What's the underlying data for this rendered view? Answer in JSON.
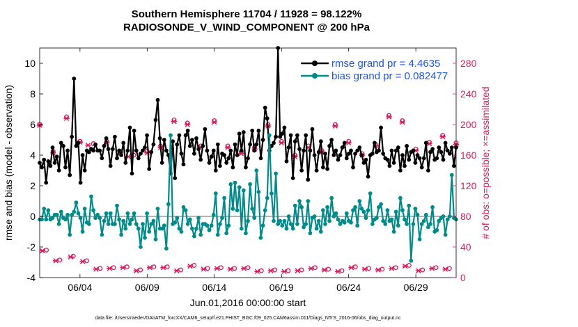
{
  "chart_data": {
    "type": "line",
    "title_line1": "Southern Hemisphere 11704 / 11928 = 98.122%",
    "title_line2": "RADIOSONDE_V_WIND_COMPONENT @ 200 hPa",
    "xlabel": "Jun.01,2016 00:00:00 start",
    "ylabel": "rmse and bias (model - observation)",
    "y2label": "# of obs: o=possible; ×=assimilated",
    "xlim": [
      1,
      32
    ],
    "ylim": [
      -4,
      11
    ],
    "y2lim": [
      0,
      300
    ],
    "x_ticks": [
      4,
      9,
      14,
      19,
      24,
      29
    ],
    "x_tick_labels": [
      "06/04",
      "06/09",
      "06/14",
      "06/19",
      "06/24",
      "06/29"
    ],
    "y_ticks": [
      -4,
      -2,
      0,
      2,
      4,
      6,
      8,
      10
    ],
    "y_tick_labels": [
      "-4",
      "-2",
      "0",
      "2",
      "4",
      "6",
      "8",
      "10"
    ],
    "y2_ticks": [
      0,
      40,
      80,
      120,
      160,
      200,
      240,
      280
    ],
    "y2_tick_labels": [
      "0",
      "40",
      "80",
      "120",
      "160",
      "200",
      "240",
      "280"
    ],
    "colors": {
      "rmse": "#000000",
      "bias": "#008b8b",
      "obs": "#d81b60",
      "zero_line": "#b3b3b3",
      "legend_text": "#1f55e6"
    },
    "series": [
      {
        "name": "rmse grand pr = 4.4635",
        "values": [
          3.5,
          3.2,
          3.7,
          2.2,
          3.6,
          3.3,
          4.5,
          3.5,
          3.9,
          3.0,
          4.8,
          4.6,
          3.2,
          4.3,
          2.7,
          5.2,
          9.0,
          4.6,
          4.8,
          2.2,
          4.0,
          3.0,
          4.3,
          4.2,
          4.4,
          4.3,
          4.7,
          4.3,
          4.3,
          3.8,
          4.6,
          5.1,
          4.4,
          3.3,
          4.4,
          5.2,
          3.8,
          4.3,
          4.0,
          4.8,
          3.5,
          4.3,
          5.8,
          2.8,
          5.6,
          4.3,
          3.8,
          4.1,
          4.3,
          4.5,
          5.3,
          3.1,
          4.2,
          4.7,
          6.3,
          7.6,
          5.1,
          3.5,
          5.0,
          4.3,
          4.0,
          2.8,
          4.9,
          2.5,
          4.7,
          5.3,
          4.1,
          3.4,
          5.3,
          5.6,
          4.6,
          5.0,
          4.1,
          5.1,
          4.4,
          3.7,
          4.6,
          5.7,
          4.3,
          3.5,
          3.9,
          4.3,
          3.0,
          4.7,
          3.3,
          4.1,
          4.0,
          3.5,
          3.8,
          4.3,
          3.2,
          4.7,
          4.0,
          5.4,
          4.3,
          5.5,
          3.2,
          3.8,
          4.7,
          5.6,
          4.3,
          4.7,
          5.6,
          3.8,
          5.0,
          7.1,
          6.4,
          4.3,
          4.6,
          4.8,
          5.2,
          11.0,
          5.2,
          5.4,
          5.8,
          3.6,
          4.5,
          5.3,
          2.5,
          4.9,
          5.3,
          4.4,
          3.0,
          4.3,
          5.3,
          2.4,
          4.3,
          5.7,
          4.0,
          3.0,
          4.2,
          4.9,
          3.2,
          4.1,
          3.1,
          4.6,
          5.0,
          4.0,
          4.3,
          3.7,
          4.0,
          4.5,
          4.8,
          3.8,
          4.1,
          4.3,
          3.2,
          4.1,
          4.3,
          4.5,
          4.0,
          3.5,
          3.7,
          2.6,
          4.0,
          4.1,
          4.8,
          4.2,
          4.3,
          5.8,
          4.1,
          3.8,
          3.7,
          3.3,
          4.3,
          3.5,
          4.3,
          4.5,
          3.0,
          4.0,
          3.3,
          4.6,
          3.7,
          4.2,
          4.3,
          3.5,
          4.0,
          3.8,
          3.2,
          3.8,
          4.8,
          3.0,
          4.2,
          4.4,
          3.7,
          3.8,
          4.5,
          4.2,
          3.7,
          4.8,
          4.3,
          4.1,
          4.5,
          3.3,
          4.5
        ]
      },
      {
        "name": "bias grand pr = 0.082477",
        "values": [
          -0.2,
          -0.2,
          0.5,
          -0.2,
          0.4,
          -0.2,
          -0.1,
          0.1,
          0.1,
          -0.5,
          0.3,
          -0.1,
          -0.2,
          0.1,
          -1.2,
          0.1,
          0.3,
          0.9,
          0.2,
          -0.1,
          -1.0,
          0.5,
          -0.4,
          -0.5,
          1.3,
          0.4,
          -0.1,
          0.1,
          -0.1,
          -1.2,
          -0.3,
          0.2,
          -0.5,
          0.2,
          -0.5,
          -0.5,
          0.7,
          -0.2,
          -1.2,
          -0.3,
          -0.8,
          0.2,
          -0.5,
          -0.2,
          0.2,
          -0.5,
          -0.8,
          -2.0,
          -0.5,
          -1.4,
          0.2,
          -1.0,
          -0.5,
          -0.3,
          -1.5,
          0.5,
          -0.8,
          -0.8,
          -0.6,
          -2.1,
          0.8,
          5.3,
          -0.5,
          -0.4,
          -0.1,
          -0.8,
          -1.0,
          0.6,
          0.4,
          -0.5,
          -0.2,
          -0.8,
          -1.3,
          -0.8,
          -0.1,
          -1.2,
          -0.5,
          -0.5,
          -0.6,
          -0.9,
          -0.6,
          0.1,
          1.5,
          -1.2,
          -0.5,
          -0.1,
          1.2,
          -1.1,
          -0.6,
          2.1,
          0.5,
          2.2,
          0.4,
          1.9,
          -0.8,
          1.7,
          -1.1,
          -0.3,
          2.1,
          0.5,
          -0.1,
          3.0,
          1.6,
          -1.4,
          -0.6,
          0.4,
          1.2,
          5.3,
          1.5,
          -0.3,
          2.8,
          -0.5,
          -0.3,
          -0.6,
          -0.3,
          -0.8,
          0.0,
          -0.5,
          -0.8,
          0.7,
          -0.5,
          1.0,
          0.6,
          -0.7,
          -0.5,
          1.0,
          -1.1,
          -0.1,
          0.0,
          -0.8,
          -0.3,
          -1.0,
          0.4,
          -0.5,
          0.6,
          -0.3,
          1.2,
          0.0,
          0.2,
          -0.2,
          -0.5,
          -0.3,
          -0.4,
          0.2,
          -0.3,
          -0.4,
          0.4,
          0.6,
          -0.6,
          1.0,
          0.5,
          0.3,
          -0.1,
          0.4,
          1.5,
          -0.5,
          -0.2,
          -0.1,
          0.6,
          0.8,
          -0.3,
          -0.5,
          0.4,
          -0.3,
          -0.2,
          -1.0,
          0.3,
          -0.6,
          1.2,
          0.4,
          -0.2,
          -0.5,
          0.7,
          -2.9,
          -0.5,
          0.5,
          0.1,
          -1.5,
          -0.5,
          -0.3,
          0.1,
          -0.7,
          -0.5,
          0.6,
          -1.0,
          -0.9,
          -0.3,
          -0.1,
          0.0,
          -1.2,
          -0.2,
          0.0,
          2.7,
          -0.1,
          -0.2
        ]
      },
      {
        "name": "possible",
        "values": [
          [
            1.0,
            200
          ],
          [
            1.5,
            36
          ],
          [
            2.0,
            165
          ],
          [
            2.5,
            23
          ],
          [
            3.0,
            210
          ],
          [
            3.5,
            28
          ],
          [
            4.0,
            178
          ],
          [
            4.5,
            22
          ],
          [
            5.0,
            175
          ],
          [
            5.5,
            12
          ],
          [
            6.0,
            178
          ],
          [
            6.5,
            13
          ],
          [
            7.0,
            165
          ],
          [
            7.5,
            14
          ],
          [
            8.0,
            160
          ],
          [
            8.5,
            10
          ],
          [
            9.0,
            165
          ],
          [
            9.5,
            14
          ],
          [
            10.0,
            172
          ],
          [
            10.5,
            14
          ],
          [
            11.0,
            206
          ],
          [
            11.5,
            10
          ],
          [
            12.0,
            202
          ],
          [
            12.5,
            16
          ],
          [
            13.0,
            172
          ],
          [
            13.5,
            12
          ],
          [
            14.0,
            205
          ],
          [
            14.5,
            13
          ],
          [
            15.0,
            172
          ],
          [
            15.5,
            12
          ],
          [
            16.0,
            164
          ],
          [
            16.5,
            13
          ],
          [
            17.0,
            170
          ],
          [
            17.5,
            9
          ],
          [
            18.0,
            200
          ],
          [
            18.5,
            10
          ],
          [
            19.0,
            178
          ],
          [
            19.5,
            9
          ],
          [
            20.0,
            160
          ],
          [
            20.5,
            10
          ],
          [
            21.0,
            172
          ],
          [
            21.5,
            13
          ],
          [
            22.0,
            166
          ],
          [
            22.5,
            11
          ],
          [
            23.0,
            200
          ],
          [
            23.5,
            9
          ],
          [
            24.0,
            178
          ],
          [
            24.5,
            14
          ],
          [
            25.0,
            162
          ],
          [
            25.5,
            12
          ],
          [
            26.0,
            174
          ],
          [
            26.5,
            11
          ],
          [
            27.0,
            212
          ],
          [
            27.5,
            13
          ],
          [
            28.0,
            205
          ],
          [
            28.5,
            16
          ],
          [
            29.0,
            168
          ],
          [
            29.5,
            10
          ],
          [
            30.0,
            177
          ],
          [
            30.5,
            13
          ],
          [
            31.0,
            186
          ],
          [
            31.5,
            12
          ],
          [
            32.0,
            176
          ]
        ]
      },
      {
        "name": "assimilated",
        "values": [
          [
            1.0,
            199
          ],
          [
            1.2,
            35
          ],
          [
            2.0,
            163
          ],
          [
            2.2,
            22
          ],
          [
            3.0,
            208
          ],
          [
            3.3,
            27
          ],
          [
            4.0,
            177
          ],
          [
            4.2,
            21
          ],
          [
            4.6,
            173
          ],
          [
            5.2,
            11
          ],
          [
            6.0,
            176
          ],
          [
            6.2,
            12
          ],
          [
            7.0,
            163
          ],
          [
            7.2,
            13
          ],
          [
            7.6,
            158
          ],
          [
            8.2,
            9
          ],
          [
            9.0,
            163
          ],
          [
            9.2,
            13
          ],
          [
            10.0,
            170
          ],
          [
            10.2,
            13
          ],
          [
            11.0,
            204
          ],
          [
            11.2,
            9
          ],
          [
            12.0,
            200
          ],
          [
            12.2,
            15
          ],
          [
            13.0,
            170
          ],
          [
            13.2,
            11
          ],
          [
            14.0,
            203
          ],
          [
            14.2,
            12
          ],
          [
            15.0,
            170
          ],
          [
            15.2,
            11
          ],
          [
            16.0,
            162
          ],
          [
            16.2,
            12
          ],
          [
            17.0,
            168
          ],
          [
            17.2,
            8
          ],
          [
            18.0,
            198
          ],
          [
            18.2,
            9
          ],
          [
            19.0,
            176
          ],
          [
            19.2,
            8
          ],
          [
            20.0,
            158
          ],
          [
            20.2,
            9
          ],
          [
            21.0,
            170
          ],
          [
            21.2,
            12
          ],
          [
            22.0,
            164
          ],
          [
            22.2,
            10
          ],
          [
            23.0,
            198
          ],
          [
            23.2,
            8
          ],
          [
            24.0,
            176
          ],
          [
            24.2,
            13
          ],
          [
            25.0,
            160
          ],
          [
            25.2,
            11
          ],
          [
            26.0,
            172
          ],
          [
            26.2,
            10
          ],
          [
            27.0,
            210
          ],
          [
            27.2,
            12
          ],
          [
            28.0,
            203
          ],
          [
            28.2,
            15
          ],
          [
            29.0,
            166
          ],
          [
            29.2,
            9
          ],
          [
            30.0,
            175
          ],
          [
            30.2,
            12
          ],
          [
            31.0,
            184
          ],
          [
            31.2,
            11
          ],
          [
            32.0,
            174
          ]
        ]
      }
    ]
  },
  "footer": "data file: /Users/raeder/DAI/ATM_forcXX/CAM6_setup/f.e21.FHIST_BGC.f09_025.CAM6assim.011/Diags_NTrS_2016-06/obs_diag_output.nc"
}
